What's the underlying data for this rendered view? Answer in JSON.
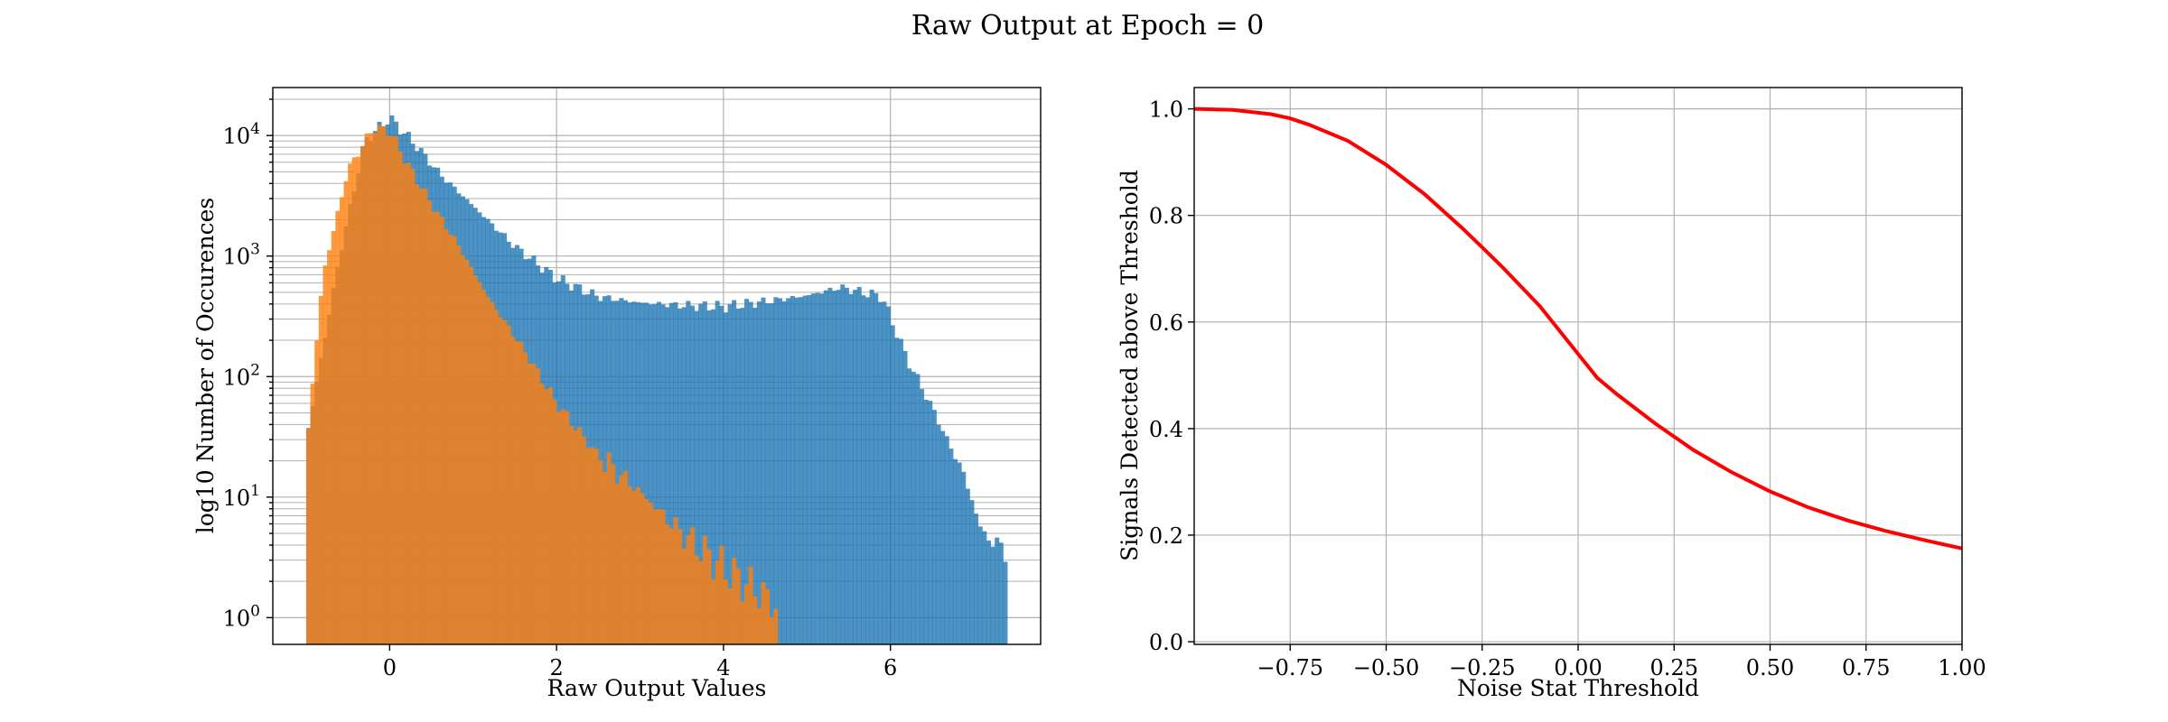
{
  "title": "Raw Output at Epoch = 0",
  "chart_data": [
    {
      "type": "bar",
      "subtype": "histogram",
      "xlabel": "Raw Output Values",
      "ylabel": "log10 Number of Occurences",
      "xlim": [
        -1.4,
        7.8
      ],
      "ylim": [
        0.6,
        25000
      ],
      "yscale": "log",
      "grid": true,
      "xticks": [
        "0",
        "2",
        "4",
        "6"
      ],
      "yticks": [
        "10^0",
        "10^1",
        "10^2",
        "10^3",
        "10^4"
      ],
      "series": [
        {
          "color": "#1f77b4",
          "alpha": 0.8,
          "points": [
            [
              -1.0,
              30
            ],
            [
              -0.6,
              1000
            ],
            [
              -0.3,
              9000
            ],
            [
              0.0,
              14000
            ],
            [
              0.3,
              8500
            ],
            [
              0.6,
              4800
            ],
            [
              1.0,
              2600
            ],
            [
              1.5,
              1200
            ],
            [
              2.0,
              650
            ],
            [
              2.5,
              460
            ],
            [
              3.0,
              410
            ],
            [
              3.5,
              390
            ],
            [
              4.0,
              380
            ],
            [
              4.5,
              420
            ],
            [
              5.0,
              470
            ],
            [
              5.4,
              550
            ],
            [
              5.9,
              460
            ],
            [
              6.2,
              140
            ],
            [
              6.5,
              55
            ],
            [
              6.9,
              14
            ],
            [
              7.1,
              5
            ],
            [
              7.4,
              3.5
            ]
          ],
          "xmin": -1.0,
          "xmax": 7.4
        },
        {
          "color": "#ff7f0e",
          "alpha": 0.8,
          "points": [
            [
              -1.0,
              25
            ],
            [
              -0.8,
              700
            ],
            [
              -0.5,
              5200
            ],
            [
              -0.2,
              11500
            ],
            [
              0.0,
              11000
            ],
            [
              0.2,
              6000
            ],
            [
              0.5,
              2700
            ],
            [
              0.8,
              1300
            ],
            [
              1.2,
              430
            ],
            [
              1.6,
              170
            ],
            [
              2.0,
              60
            ],
            [
              2.5,
              22
            ],
            [
              3.0,
              11
            ],
            [
              3.5,
              5
            ],
            [
              4.0,
              2.6
            ],
            [
              4.5,
              1.5
            ],
            [
              4.65,
              1.2
            ]
          ],
          "xmin": -1.0,
          "xmax": 4.65
        }
      ]
    },
    {
      "type": "line",
      "xlabel": "Noise Stat Threshold",
      "ylabel": "Signals Detected above Threshold",
      "xlim": [
        -1.0,
        1.0
      ],
      "ylim": [
        -0.005,
        1.04
      ],
      "grid": true,
      "xticks": [
        "−0.75",
        "−0.50",
        "−0.25",
        "0.00",
        "0.25",
        "0.50",
        "0.75",
        "1.00"
      ],
      "yticks": [
        "0.0",
        "0.2",
        "0.4",
        "0.6",
        "0.8",
        "1.0"
      ],
      "series": [
        {
          "color": "#ff0000",
          "x": [
            -1.0,
            -0.9,
            -0.8,
            -0.75,
            -0.7,
            -0.6,
            -0.5,
            -0.4,
            -0.3,
            -0.25,
            -0.2,
            -0.1,
            0.0,
            0.05,
            0.1,
            0.2,
            0.3,
            0.4,
            0.5,
            0.6,
            0.7,
            0.8,
            0.9,
            1.0
          ],
          "y": [
            1.0,
            0.998,
            0.99,
            0.982,
            0.97,
            0.94,
            0.895,
            0.84,
            0.775,
            0.74,
            0.705,
            0.63,
            0.54,
            0.495,
            0.465,
            0.41,
            0.36,
            0.318,
            0.282,
            0.252,
            0.228,
            0.208,
            0.191,
            0.175
          ]
        }
      ]
    }
  ]
}
